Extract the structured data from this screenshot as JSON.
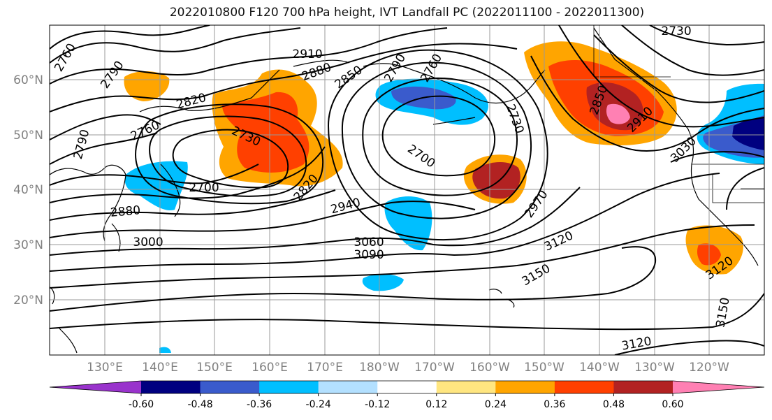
{
  "title": "2022010800 F120 700 hPa height, IVT Landfall PC (2022011100 - 2022011300)",
  "lat_labels": [
    "60°N",
    "50°N",
    "40°N",
    "30°N",
    "20°N"
  ],
  "lon_labels": [
    "130°E",
    "140°E",
    "150°E",
    "160°E",
    "170°E",
    "180°W",
    "170°W",
    "160°W",
    "150°W",
    "140°W",
    "130°W",
    "120°W"
  ],
  "contour_labels": [
    "2760",
    "2790",
    "2820",
    "2790",
    "2760",
    "2730",
    "2700",
    "2880",
    "3000",
    "2910",
    "2880",
    "2850",
    "2790",
    "2760",
    "2730",
    "2700",
    "2820",
    "2940",
    "3060",
    "3090",
    "2970",
    "3120",
    "3150",
    "2850",
    "2910",
    "3030",
    "3120",
    "3150",
    "3120",
    "2730"
  ],
  "colorbar": {
    "ticks": [
      "-0.60",
      "-0.48",
      "-0.36",
      "-0.24",
      "-0.12",
      "0.12",
      "0.24",
      "0.36",
      "0.48",
      "0.60"
    ],
    "colors": [
      "#9933cc",
      "#000080",
      "#3a5bcc",
      "#00bfff",
      "#b3e0ff",
      "#ffffff",
      "#ffe680",
      "#ffa500",
      "#ff4000",
      "#b22222",
      "#ff80b3",
      "#ff80b3"
    ]
  }
}
